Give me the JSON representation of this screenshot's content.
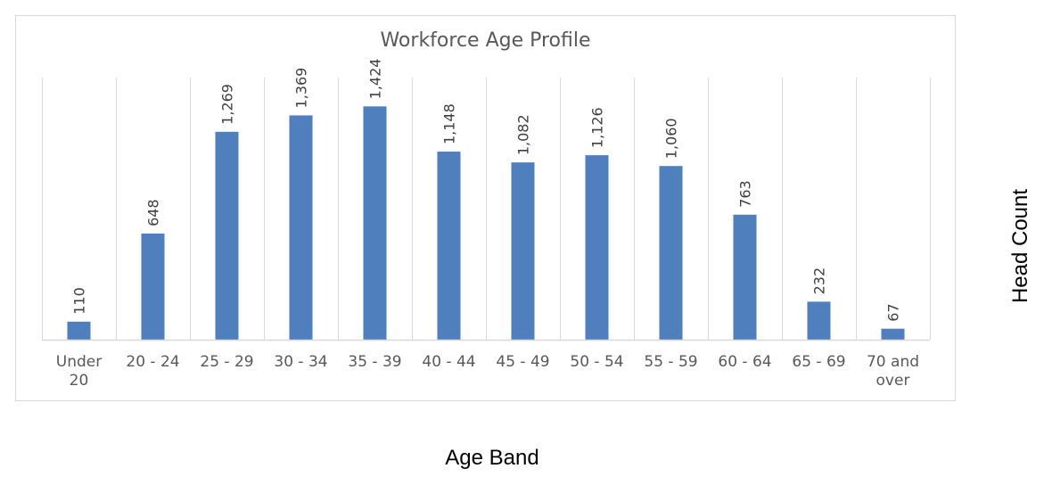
{
  "chart_data": {
    "type": "bar",
    "title": "Workforce Age Profile",
    "xlabel": "Age Band",
    "ylabel": "Head Count",
    "categories": [
      [
        "Under",
        "20"
      ],
      [
        "20 - 24"
      ],
      [
        "25 - 29"
      ],
      [
        "30 - 34"
      ],
      [
        "35 - 39"
      ],
      [
        "40 - 44"
      ],
      [
        "45 - 49"
      ],
      [
        "50 - 54"
      ],
      [
        "55 - 59"
      ],
      [
        "60 - 64"
      ],
      [
        "65 - 69"
      ],
      [
        "70 and",
        "over"
      ]
    ],
    "values": [
      110,
      648,
      1269,
      1369,
      1424,
      1148,
      1082,
      1126,
      1060,
      763,
      232,
      67
    ],
    "data_labels": [
      "110",
      "648",
      "1,269",
      "1,369",
      "1,424",
      "1,148",
      "1,082",
      "1,126",
      "1,060",
      "763",
      "232",
      "67"
    ],
    "ylim": [
      0,
      1600
    ],
    "grid": "vertical",
    "legend": "none",
    "colors": {
      "bar": "#4f7fbd",
      "grid": "#d9d9d9",
      "text": "#595959"
    }
  }
}
